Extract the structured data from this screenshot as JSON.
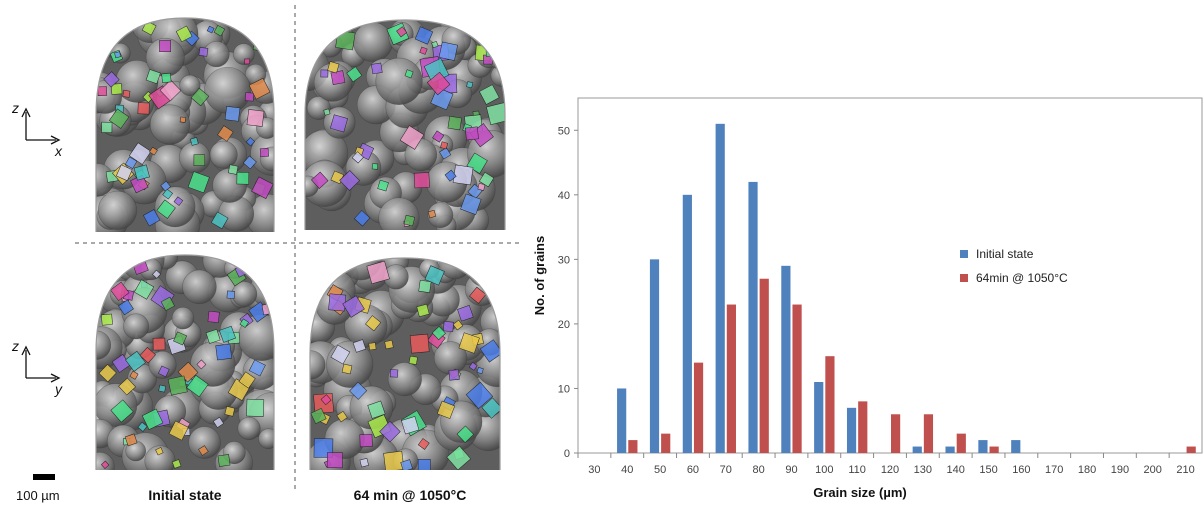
{
  "figure": {
    "scale_bar_label": "100 µm",
    "left_axes_top": {
      "vertical": "z",
      "horizontal": "x"
    },
    "left_axes_bottom": {
      "vertical": "z",
      "horizontal": "y"
    },
    "column_labels": [
      "Initial state",
      "64 min @ 1050°C"
    ]
  },
  "chart_data": {
    "type": "bar",
    "xlabel": "Grain size (µm)",
    "ylabel": "No. of grains",
    "ylim": [
      0,
      55
    ],
    "yticks": [
      0,
      10,
      20,
      30,
      40,
      50
    ],
    "categories": [
      "30",
      "40",
      "50",
      "60",
      "70",
      "80",
      "90",
      "100",
      "110",
      "120",
      "130",
      "140",
      "150",
      "160",
      "170",
      "180",
      "190",
      "200",
      "210"
    ],
    "series": [
      {
        "name": "Initial state",
        "color": "#4f81bd",
        "values": [
          0,
          10,
          30,
          40,
          51,
          42,
          29,
          11,
          7,
          0,
          1,
          1,
          2,
          2,
          0,
          0,
          0,
          0,
          0
        ]
      },
      {
        "name": "64min @ 1050°C",
        "color": "#c0504d",
        "values": [
          0,
          2,
          3,
          14,
          23,
          27,
          23,
          15,
          8,
          6,
          6,
          3,
          1,
          0,
          0,
          0,
          0,
          0,
          1
        ]
      }
    ],
    "legend": "right",
    "grid": false
  }
}
